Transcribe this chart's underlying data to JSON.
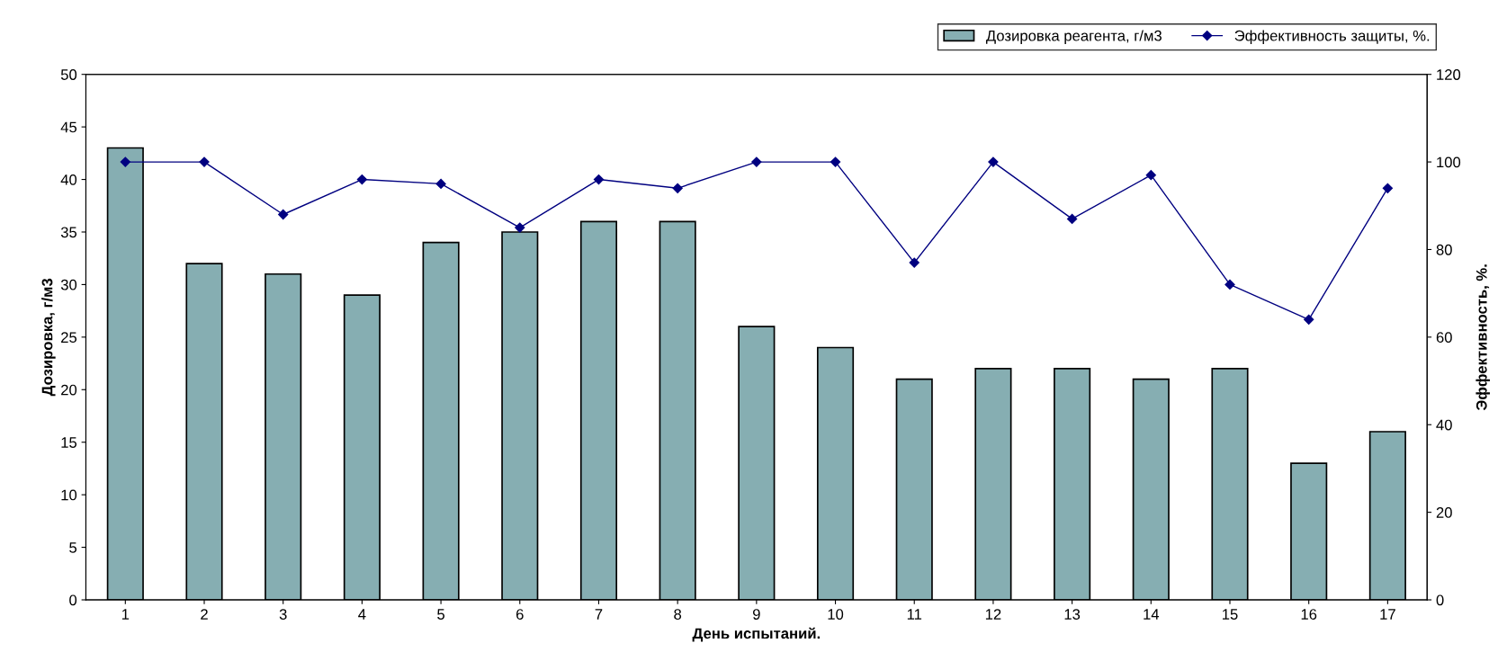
{
  "chart_data": {
    "type": "bar",
    "xlabel": "День испытаний.",
    "ylabel": "Дозировка, г/м3",
    "y2label": "Эффективность, %.",
    "categories": [
      "1",
      "2",
      "3",
      "4",
      "5",
      "6",
      "7",
      "8",
      "9",
      "10",
      "11",
      "12",
      "13",
      "14",
      "15",
      "16",
      "17"
    ],
    "series": [
      {
        "name": "Дозировка реагента, г/м3",
        "color": "#86aeb2",
        "values": [
          43,
          32,
          31,
          29,
          34,
          35,
          36,
          36,
          26,
          24,
          21,
          22,
          22,
          21,
          22,
          13,
          16
        ]
      },
      {
        "name": "Эффективность защиты, %.",
        "type": "line",
        "axis": "y2",
        "color": "#000080",
        "values": [
          100,
          100,
          88,
          96,
          95,
          85,
          96,
          94,
          100,
          100,
          77,
          100,
          87,
          97,
          72,
          64,
          94
        ]
      }
    ],
    "ylim": [
      0,
      50
    ],
    "yticks": [
      0,
      5,
      10,
      15,
      20,
      25,
      30,
      35,
      40,
      45,
      50
    ],
    "y2lim": [
      0,
      120
    ],
    "y2ticks": [
      0,
      20,
      40,
      60,
      80,
      100,
      120
    ],
    "marker": "diamond",
    "line_style": "solid",
    "grid": false,
    "legend": "top right"
  }
}
